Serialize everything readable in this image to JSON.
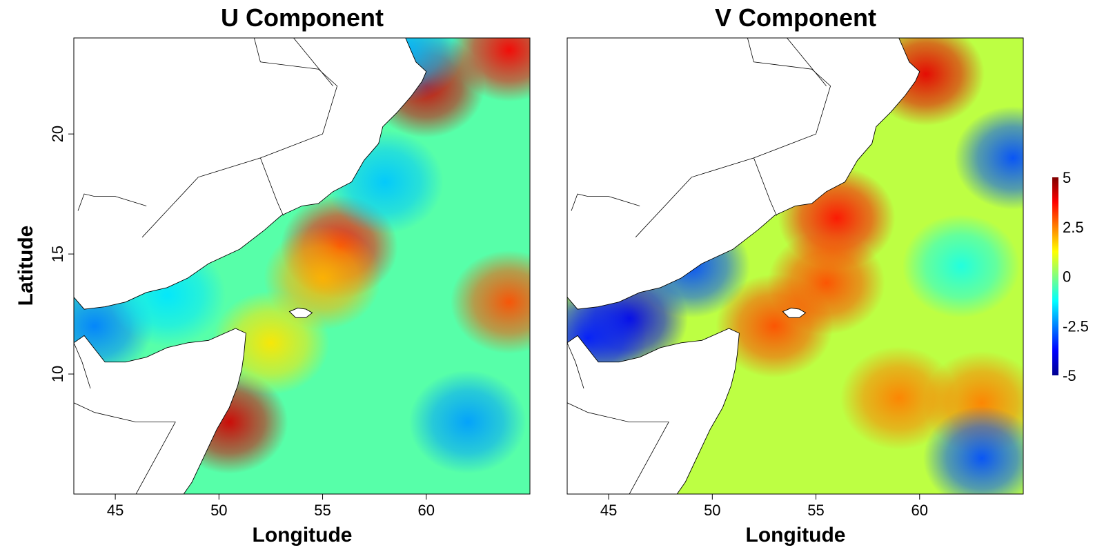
{
  "colorbar": {
    "ticks": [
      {
        "value": 5,
        "label": "5"
      },
      {
        "value": 2.5,
        "label": "2.5"
      },
      {
        "value": 0,
        "label": "0"
      },
      {
        "value": -2.5,
        "label": "-2.5"
      },
      {
        "value": -5,
        "label": "-5"
      }
    ],
    "range": [
      -5,
      5
    ],
    "colors": [
      "#00008f",
      "#0000ff",
      "#0080ff",
      "#00ffff",
      "#80ff80",
      "#ffff00",
      "#ff8000",
      "#ff0000",
      "#800000"
    ]
  },
  "map": {
    "lon_range": [
      43,
      65
    ],
    "lat_range": [
      5,
      24
    ],
    "lon_ticks": [
      45,
      50,
      55,
      60
    ],
    "lat_ticks": [
      10,
      15,
      20
    ],
    "region": "Arabian Sea / Gulf of Aden",
    "panels": [
      {
        "title": "U Component",
        "xlabel": "Longitude",
        "ylabel": "Latitude",
        "field_blobs": [
          {
            "lon": 55.8,
            "lat": 15.3,
            "value": 3.6
          },
          {
            "lon": 60.0,
            "lat": 22.0,
            "value": 4.2
          },
          {
            "lon": 64.0,
            "lat": 23.5,
            "value": 3.8
          },
          {
            "lon": 64.0,
            "lat": 13.0,
            "value": 3.0
          },
          {
            "lon": 50.5,
            "lat": 8.0,
            "value": 4.2
          },
          {
            "lon": 58.0,
            "lat": 18.0,
            "value": -1.8
          },
          {
            "lon": 62.0,
            "lat": 8.0,
            "value": -2.2
          },
          {
            "lon": 59.0,
            "lat": 23.5,
            "value": -2.0
          },
          {
            "lon": 44.0,
            "lat": 12.0,
            "value": -2.5
          },
          {
            "lon": 47.5,
            "lat": 13.3,
            "value": -1.5
          },
          {
            "lon": 52.5,
            "lat": 11.3,
            "value": 1.5
          },
          {
            "lon": 55.0,
            "lat": 14.0,
            "value": 2.0
          }
        ],
        "background_value": -0.4
      },
      {
        "title": "V Component",
        "xlabel": "Longitude",
        "ylabel": "",
        "field_blobs": [
          {
            "lon": 60.3,
            "lat": 22.5,
            "value": 4.0
          },
          {
            "lon": 56.0,
            "lat": 16.5,
            "value": 3.6
          },
          {
            "lon": 55.5,
            "lat": 13.8,
            "value": 3.0
          },
          {
            "lon": 59.0,
            "lat": 9.0,
            "value": 2.5
          },
          {
            "lon": 63.0,
            "lat": 8.8,
            "value": 2.5
          },
          {
            "lon": 53.0,
            "lat": 12.0,
            "value": 3.0
          },
          {
            "lon": 46.0,
            "lat": 12.3,
            "value": -4.0
          },
          {
            "lon": 44.0,
            "lat": 11.5,
            "value": -3.5
          },
          {
            "lon": 49.0,
            "lat": 14.5,
            "value": -3.0
          },
          {
            "lon": 63.0,
            "lat": 6.5,
            "value": -3.0
          },
          {
            "lon": 64.5,
            "lat": 19.0,
            "value": -3.0
          },
          {
            "lon": 62.0,
            "lat": 14.5,
            "value": -1.0
          }
        ],
        "background_value": 0.6
      }
    ]
  }
}
